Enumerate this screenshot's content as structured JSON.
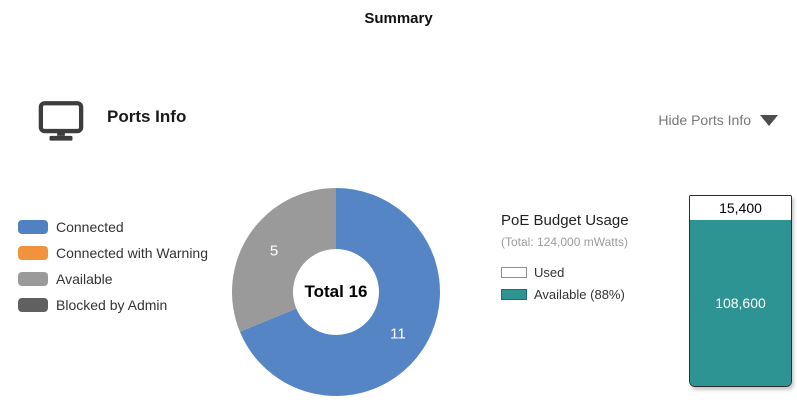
{
  "page": {
    "title": "Summary"
  },
  "ports_info": {
    "title": "Ports Info",
    "toggle_label": "Hide Ports Info",
    "icon": "monitor-icon",
    "legend": [
      {
        "label": "Connected",
        "color": "#4f81c3"
      },
      {
        "label": "Connected with Warning",
        "color": "#f0923e"
      },
      {
        "label": "Available",
        "color": "#9a9a9a"
      },
      {
        "label": "Blocked by Admin",
        "color": "#606060"
      }
    ]
  },
  "poe": {
    "title": "PoE Budget Usage",
    "subtitle": "(Total: 124,000 mWatts)",
    "legend": [
      {
        "label": "Used",
        "color": "#ffffff",
        "border": "#8f8f8f"
      },
      {
        "label": "Available (88%)",
        "color": "#2e9393",
        "border": "#1f6f6f"
      }
    ]
  },
  "chart_data": [
    {
      "type": "pie",
      "title": "Ports Info",
      "donut": true,
      "start_angle": "top",
      "direction": "clockwise",
      "total": 16,
      "center_label": "Total 16",
      "segments": [
        {
          "label": "Connected",
          "value": 11,
          "data_label": "11",
          "color": "#5585c5"
        },
        {
          "label": "Connected with Warning",
          "value": 0,
          "color": "#f0923e"
        },
        {
          "label": "Available",
          "value": 5,
          "data_label": "5",
          "color": "#9a9a9a"
        },
        {
          "label": "Blocked by Admin",
          "value": 0,
          "color": "#606060"
        }
      ]
    },
    {
      "type": "bar",
      "title": "PoE Budget Usage",
      "stacked": true,
      "total_mwatts": 124000,
      "available_percent": 88,
      "segments": [
        {
          "label": "Used",
          "value": 15400,
          "data_label": "15,400",
          "color": "#ffffff",
          "text_color": "#000000"
        },
        {
          "label": "Available",
          "value": 108600,
          "data_label": "108,600",
          "color": "#2e9393",
          "text_color": "#ffffff"
        }
      ]
    }
  ]
}
